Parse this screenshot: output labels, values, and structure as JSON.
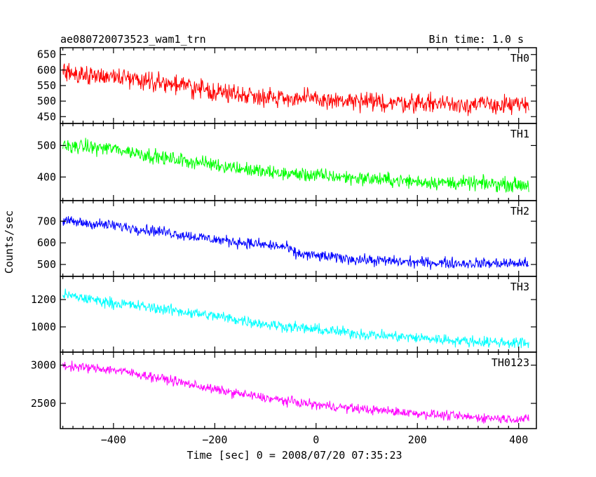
{
  "chart_data": {
    "type": "line",
    "title": "ae080720073523_wam1_trn",
    "bin_time_label": "Bin time: 1.0 s",
    "xlabel": "Time [sec] 0 = 2008/07/20 07:35:23",
    "ylabel": "Counts/sec",
    "xlim": [
      -505,
      435
    ],
    "x_ticks": [
      -400,
      -200,
      0,
      200,
      400
    ],
    "x_tick_labels": [
      "−400",
      "−200",
      "0",
      "200",
      "400"
    ],
    "x_range": [
      -500,
      420
    ],
    "panels": [
      {
        "name": "TH0",
        "color": "#ff0000",
        "ylim": [
          428,
          672
        ],
        "y_ticks": [
          450,
          500,
          550,
          600,
          650
        ],
        "trend": [
          [
            -500,
            590
          ],
          [
            -400,
            580
          ],
          [
            -300,
            560
          ],
          [
            -200,
            530
          ],
          [
            -100,
            515
          ],
          [
            0,
            505
          ],
          [
            100,
            495
          ],
          [
            200,
            495
          ],
          [
            300,
            490
          ],
          [
            420,
            485
          ]
        ],
        "noise": 30
      },
      {
        "name": "TH1",
        "color": "#00ff00",
        "ylim": [
          325,
          570
        ],
        "y_ticks": [
          400,
          500
        ],
        "trend": [
          [
            -500,
            500
          ],
          [
            -400,
            490
          ],
          [
            -300,
            460
          ],
          [
            -200,
            440
          ],
          [
            -100,
            415
          ],
          [
            0,
            405
          ],
          [
            100,
            395
          ],
          [
            200,
            385
          ],
          [
            300,
            380
          ],
          [
            420,
            375
          ]
        ],
        "noise": 22
      },
      {
        "name": "TH2",
        "color": "#0000ff",
        "ylim": [
          445,
          795
        ],
        "y_ticks": [
          500,
          600,
          700
        ],
        "trend": [
          [
            -500,
            700
          ],
          [
            -400,
            680
          ],
          [
            -300,
            650
          ],
          [
            -200,
            615
          ],
          [
            -100,
            590
          ],
          [
            -60,
            580
          ],
          [
            -40,
            550
          ],
          [
            0,
            540
          ],
          [
            100,
            520
          ],
          [
            200,
            510
          ],
          [
            300,
            505
          ],
          [
            420,
            505
          ]
        ],
        "noise": 25
      },
      {
        "name": "TH3",
        "color": "#00ffff",
        "ylim": [
          815,
          1370
        ],
        "y_ticks": [
          1000,
          1200
        ],
        "trend": [
          [
            -500,
            1235
          ],
          [
            -400,
            1175
          ],
          [
            -300,
            1130
          ],
          [
            -200,
            1080
          ],
          [
            -100,
            1020
          ],
          [
            0,
            980
          ],
          [
            100,
            945
          ],
          [
            200,
            920
          ],
          [
            300,
            895
          ],
          [
            420,
            880
          ]
        ],
        "noise": 40
      },
      {
        "name": "TH0123",
        "color": "#ff00ff",
        "ylim": [
          2170,
          3170
        ],
        "y_ticks": [
          2500,
          3000
        ],
        "trend": [
          [
            -500,
            2990
          ],
          [
            -400,
            2940
          ],
          [
            -300,
            2820
          ],
          [
            -200,
            2680
          ],
          [
            -100,
            2570
          ],
          [
            0,
            2480
          ],
          [
            100,
            2420
          ],
          [
            200,
            2370
          ],
          [
            300,
            2320
          ],
          [
            420,
            2290
          ]
        ],
        "noise": 60
      }
    ]
  }
}
